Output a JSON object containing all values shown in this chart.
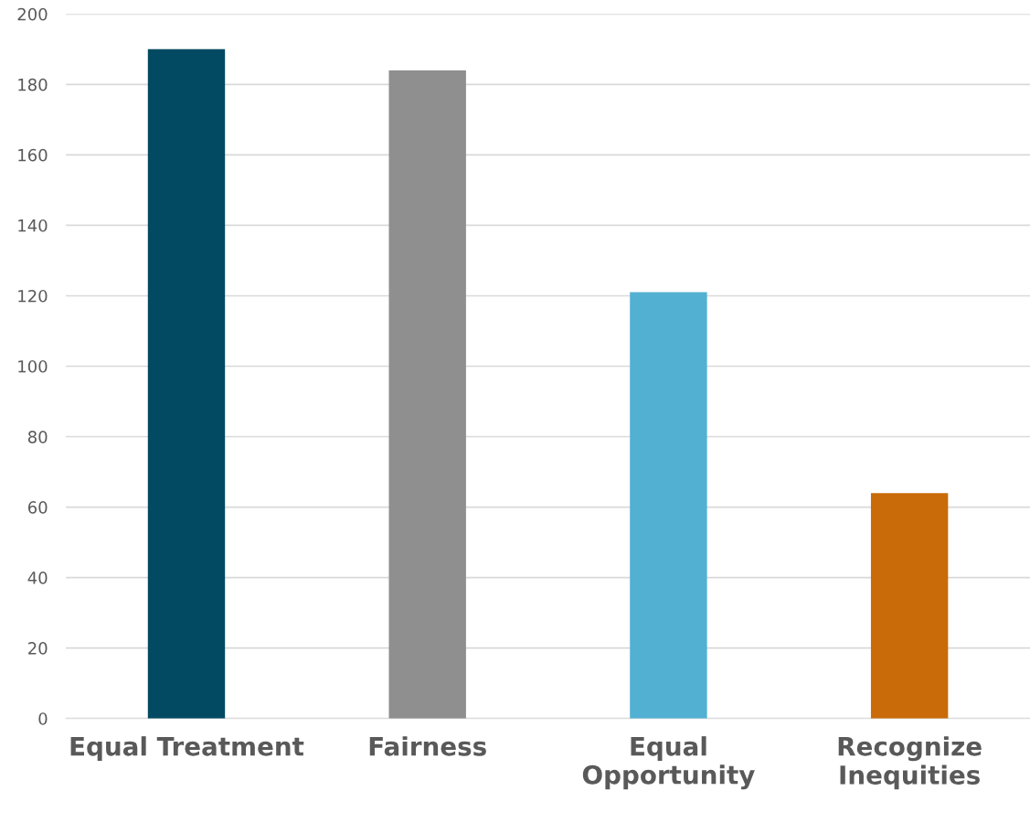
{
  "chart_data": {
    "type": "bar",
    "categories": [
      "Equal Treatment",
      "Fairness",
      "Equal\nOpportunity",
      "Recognize\nInequities"
    ],
    "values": [
      190,
      184,
      121,
      64
    ],
    "colors": [
      "#024a62",
      "#8f8f8f",
      "#52b0d2",
      "#c96b08"
    ],
    "ylim": [
      0,
      200
    ],
    "yticks": [
      0,
      20,
      40,
      60,
      80,
      100,
      120,
      140,
      160,
      180,
      200
    ],
    "grid": "y"
  }
}
